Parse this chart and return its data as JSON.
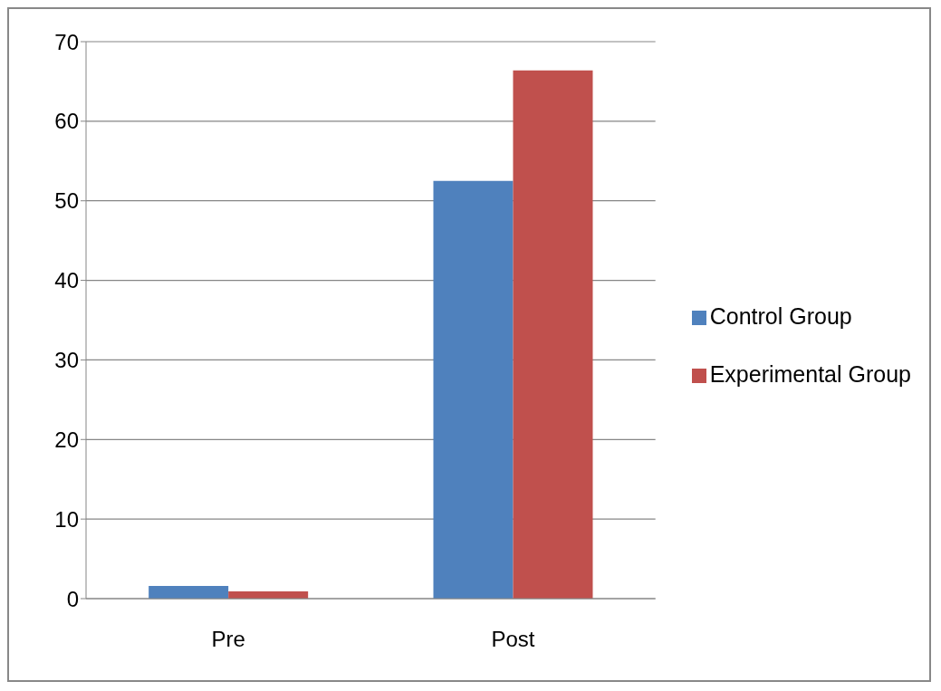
{
  "chart_data": {
    "type": "bar",
    "categories": [
      "Pre",
      "Post"
    ],
    "series": [
      {
        "name": "Control Group",
        "color": "#4f81bd",
        "values": [
          1.6,
          52.5
        ]
      },
      {
        "name": "Experimental Group",
        "color": "#c0504d",
        "values": [
          0.9,
          66.4
        ]
      }
    ],
    "ylim": [
      0,
      70
    ],
    "yticks": [
      0,
      10,
      20,
      30,
      40,
      50,
      60,
      70
    ],
    "grid": "y",
    "legend": "right"
  }
}
